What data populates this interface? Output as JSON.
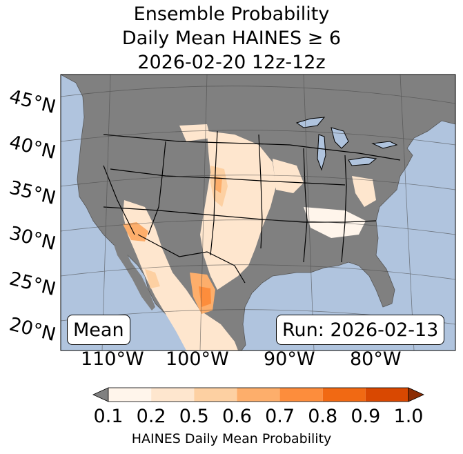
{
  "title": {
    "line1": "Ensemble Probability",
    "line2": "Daily Mean HAINES ≥ 6",
    "line3": "2026-02-20 12z-12z"
  },
  "lat_labels": [
    "45°N",
    "40°N",
    "35°N",
    "30°N",
    "25°N",
    "20°N"
  ],
  "lon_labels": [
    "110°W",
    "100°W",
    "90°W",
    "80°W"
  ],
  "boxes": {
    "left": "Mean",
    "right": "Run: 2026-02-13"
  },
  "colorbar": {
    "ticks": [
      "0.1",
      "0.2",
      "0.5",
      "0.6",
      "0.7",
      "0.8",
      "0.9",
      "1.0"
    ],
    "label": "HAINES Daily Mean Probability",
    "colors": [
      "#fff5eb",
      "#fee6ce",
      "#fdd0a2",
      "#fdae6b",
      "#fd8d3c",
      "#f16913",
      "#d94801"
    ],
    "under_color": "#808080",
    "over_color": "#8c2d04"
  },
  "colors": {
    "ocean": "#b0c4de",
    "land_no_data": "#808080"
  }
}
